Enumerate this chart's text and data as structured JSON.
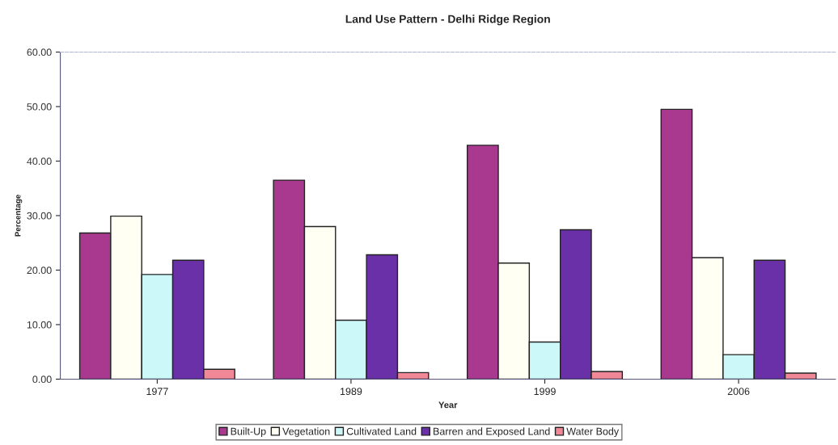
{
  "chart_data": {
    "type": "bar",
    "title": "Land Use Pattern - Delhi Ridge Region",
    "xlabel": "Year",
    "ylabel": "Percentage",
    "categories": [
      "1977",
      "1989",
      "1999",
      "2006"
    ],
    "series": [
      {
        "name": "Built-Up",
        "color": "#a8398f",
        "values": [
          26.8,
          36.5,
          42.9,
          49.5
        ]
      },
      {
        "name": "Vegetation",
        "color": "#fffff4",
        "values": [
          29.9,
          28.0,
          21.3,
          22.3
        ]
      },
      {
        "name": "Cultivated Land",
        "color": "#ccf8fa",
        "values": [
          19.2,
          10.8,
          6.8,
          4.5
        ]
      },
      {
        "name": "Barren and Exposed Land",
        "color": "#6a30a8",
        "values": [
          21.8,
          22.8,
          27.4,
          21.8
        ]
      },
      {
        "name": "Water Body",
        "color": "#f08898",
        "values": [
          1.8,
          1.2,
          1.4,
          1.1
        ]
      }
    ],
    "ylim": [
      0,
      60
    ],
    "yticks": [
      {
        "value": 0,
        "label": "0.00"
      },
      {
        "value": 10,
        "label": "10.00"
      },
      {
        "value": 20,
        "label": "20.00"
      },
      {
        "value": 30,
        "label": "30.00"
      },
      {
        "value": 40,
        "label": "40.00"
      },
      {
        "value": 50,
        "label": "50.00"
      },
      {
        "value": 60,
        "label": "60.00"
      }
    ],
    "grid": false,
    "legend": "bottom"
  }
}
